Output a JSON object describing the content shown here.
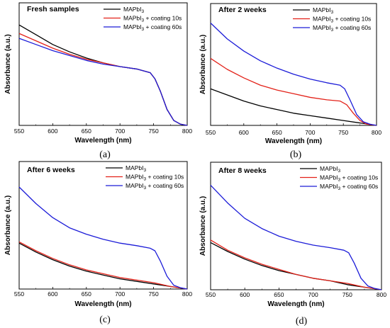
{
  "chart_data": [
    {
      "type": "line",
      "panel": "(a)",
      "title": "Fresh samples",
      "xlabel": "Wavelength (nm)",
      "ylabel": "Absorbance (a.u.)",
      "xlim": [
        550,
        800
      ],
      "ylim": [
        0,
        1
      ],
      "xticks": [
        550,
        600,
        650,
        700,
        750,
        800
      ],
      "grid": false,
      "legend_position": "top-right",
      "series": [
        {
          "name": "MAPbI3",
          "color": "#000000",
          "x": [
            550,
            575,
            600,
            625,
            650,
            675,
            700,
            725,
            745,
            752,
            760,
            770,
            780,
            790,
            800
          ],
          "y": [
            0.82,
            0.74,
            0.66,
            0.6,
            0.55,
            0.51,
            0.48,
            0.46,
            0.43,
            0.38,
            0.28,
            0.13,
            0.04,
            0.01,
            0.0
          ]
        },
        {
          "name": "MAPbI3 + coating 10s",
          "color": "#e32219",
          "x": [
            550,
            575,
            600,
            625,
            650,
            675,
            700,
            725,
            745,
            752,
            760,
            770,
            780,
            790,
            800
          ],
          "y": [
            0.75,
            0.69,
            0.63,
            0.58,
            0.54,
            0.51,
            0.48,
            0.46,
            0.43,
            0.38,
            0.28,
            0.13,
            0.04,
            0.01,
            0.0
          ]
        },
        {
          "name": "MAPbI3 + coating 60s",
          "color": "#1c1cd8",
          "x": [
            550,
            575,
            600,
            625,
            650,
            675,
            700,
            725,
            745,
            752,
            760,
            770,
            780,
            790,
            800
          ],
          "y": [
            0.71,
            0.66,
            0.61,
            0.57,
            0.53,
            0.5,
            0.48,
            0.46,
            0.43,
            0.38,
            0.28,
            0.13,
            0.04,
            0.01,
            0.0
          ]
        }
      ]
    },
    {
      "type": "line",
      "panel": "(b)",
      "title": "After 2 weeks",
      "xlabel": "Wavelength (nm)",
      "ylabel": "Absorbance (a.u.)",
      "xlim": [
        550,
        800
      ],
      "ylim": [
        0,
        1
      ],
      "xticks": [
        550,
        600,
        650,
        700,
        750,
        800
      ],
      "grid": false,
      "legend_position": "top-right",
      "series": [
        {
          "name": "MAPbI3",
          "color": "#000000",
          "x": [
            550,
            575,
            600,
            625,
            650,
            675,
            700,
            725,
            750,
            775,
            800
          ],
          "y": [
            0.3,
            0.25,
            0.2,
            0.16,
            0.13,
            0.1,
            0.08,
            0.06,
            0.04,
            0.02,
            0.0
          ]
        },
        {
          "name": "MAPbI3 + coating 10s",
          "color": "#e32219",
          "x": [
            550,
            575,
            600,
            625,
            650,
            675,
            700,
            725,
            745,
            755,
            765,
            775,
            785,
            800
          ],
          "y": [
            0.55,
            0.46,
            0.39,
            0.33,
            0.29,
            0.26,
            0.23,
            0.21,
            0.2,
            0.17,
            0.1,
            0.04,
            0.01,
            0.0
          ]
        },
        {
          "name": "MAPbI3 + coating 60s",
          "color": "#1c1cd8",
          "x": [
            550,
            575,
            600,
            625,
            650,
            675,
            700,
            725,
            745,
            752,
            760,
            770,
            780,
            790,
            800
          ],
          "y": [
            0.84,
            0.71,
            0.61,
            0.53,
            0.47,
            0.42,
            0.38,
            0.35,
            0.33,
            0.3,
            0.21,
            0.09,
            0.03,
            0.01,
            0.0
          ]
        }
      ]
    },
    {
      "type": "line",
      "panel": "(c)",
      "title": "After 6 weeks",
      "xlabel": "Wavelength (nm)",
      "ylabel": "Absorbance (a.u.)",
      "xlim": [
        550,
        800
      ],
      "ylim": [
        0,
        1
      ],
      "xticks": [
        550,
        600,
        650,
        700,
        750,
        800
      ],
      "grid": false,
      "legend_position": "top-right",
      "series": [
        {
          "name": "MAPbI3",
          "color": "#000000",
          "x": [
            550,
            575,
            600,
            625,
            650,
            675,
            700,
            725,
            750,
            775,
            800
          ],
          "y": [
            0.36,
            0.29,
            0.23,
            0.18,
            0.14,
            0.11,
            0.08,
            0.06,
            0.04,
            0.02,
            0.0
          ]
        },
        {
          "name": "MAPbI3 + coating 10s",
          "color": "#e32219",
          "x": [
            550,
            575,
            600,
            625,
            650,
            675,
            700,
            725,
            750,
            775,
            800
          ],
          "y": [
            0.37,
            0.3,
            0.24,
            0.19,
            0.15,
            0.12,
            0.09,
            0.07,
            0.05,
            0.02,
            0.0
          ]
        },
        {
          "name": "MAPbI3 + coating 60s",
          "color": "#1c1cd8",
          "x": [
            550,
            575,
            600,
            625,
            650,
            675,
            700,
            725,
            745,
            752,
            760,
            770,
            780,
            790,
            800
          ],
          "y": [
            0.8,
            0.67,
            0.56,
            0.48,
            0.43,
            0.39,
            0.36,
            0.34,
            0.32,
            0.3,
            0.22,
            0.1,
            0.03,
            0.01,
            0.0
          ]
        }
      ]
    },
    {
      "type": "line",
      "panel": "(d)",
      "title": "After 8 weeks",
      "xlabel": "Wavelength (nm)",
      "ylabel": "Absorbance (a.u.)",
      "xlim": [
        550,
        800
      ],
      "ylim": [
        0,
        1
      ],
      "xticks": [
        550,
        600,
        650,
        700,
        750,
        800
      ],
      "grid": false,
      "legend_position": "top-right",
      "series": [
        {
          "name": "MAPbI3",
          "color": "#000000",
          "x": [
            550,
            575,
            600,
            625,
            650,
            675,
            700,
            725,
            750,
            775,
            800
          ],
          "y": [
            0.37,
            0.3,
            0.24,
            0.19,
            0.15,
            0.12,
            0.09,
            0.07,
            0.04,
            0.02,
            0.0
          ]
        },
        {
          "name": "MAPbI3 + coating 10s",
          "color": "#e32219",
          "x": [
            550,
            575,
            600,
            625,
            650,
            675,
            700,
            725,
            750,
            775,
            800
          ],
          "y": [
            0.39,
            0.31,
            0.25,
            0.2,
            0.16,
            0.12,
            0.09,
            0.07,
            0.05,
            0.02,
            0.0
          ]
        },
        {
          "name": "MAPbI3 + coating 60s",
          "color": "#1c1cd8",
          "x": [
            550,
            575,
            600,
            625,
            650,
            675,
            700,
            725,
            745,
            752,
            760,
            770,
            780,
            790,
            800
          ],
          "y": [
            0.82,
            0.68,
            0.56,
            0.48,
            0.42,
            0.38,
            0.35,
            0.33,
            0.31,
            0.29,
            0.21,
            0.09,
            0.03,
            0.01,
            0.0
          ]
        }
      ]
    }
  ]
}
